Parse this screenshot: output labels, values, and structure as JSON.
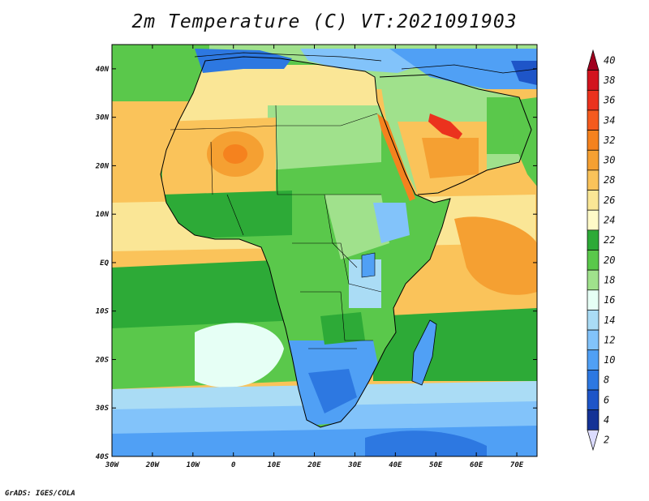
{
  "title": "2m Temperature (C) VT:2021091903",
  "credit": "GrADS: IGES/COLA",
  "map": {
    "variable": "2m Temperature",
    "units": "C",
    "valid_time": "2021091903",
    "extent": {
      "lon": [
        -30,
        75
      ],
      "lat": [
        -40,
        45
      ]
    },
    "lon_ticks": [
      "30W",
      "20W",
      "10W",
      "0",
      "10E",
      "20E",
      "30E",
      "40E",
      "50E",
      "60E",
      "70E"
    ],
    "lat_ticks": [
      "40N",
      "30N",
      "20N",
      "10N",
      "EQ",
      "10S",
      "20S",
      "30S",
      "40S"
    ]
  },
  "colorbar": {
    "labels": [
      "40",
      "38",
      "36",
      "34",
      "32",
      "30",
      "28",
      "26",
      "24",
      "22",
      "20",
      "18",
      "16",
      "14",
      "12",
      "10",
      "8",
      "6",
      "4",
      "2"
    ],
    "colors_top_to_bottom": [
      "#a0001e",
      "#d2141e",
      "#eb321e",
      "#f55a1e",
      "#f5821e",
      "#f5a032",
      "#fac35a",
      "#fae696",
      "#fffac8",
      "#2daa37",
      "#5ac84b",
      "#a0e18c",
      "#e6fff5",
      "#aadcf5",
      "#82c3fa",
      "#50a0f5",
      "#2d78e1",
      "#1e55c8",
      "#143296",
      "#dcdcff"
    ]
  }
}
